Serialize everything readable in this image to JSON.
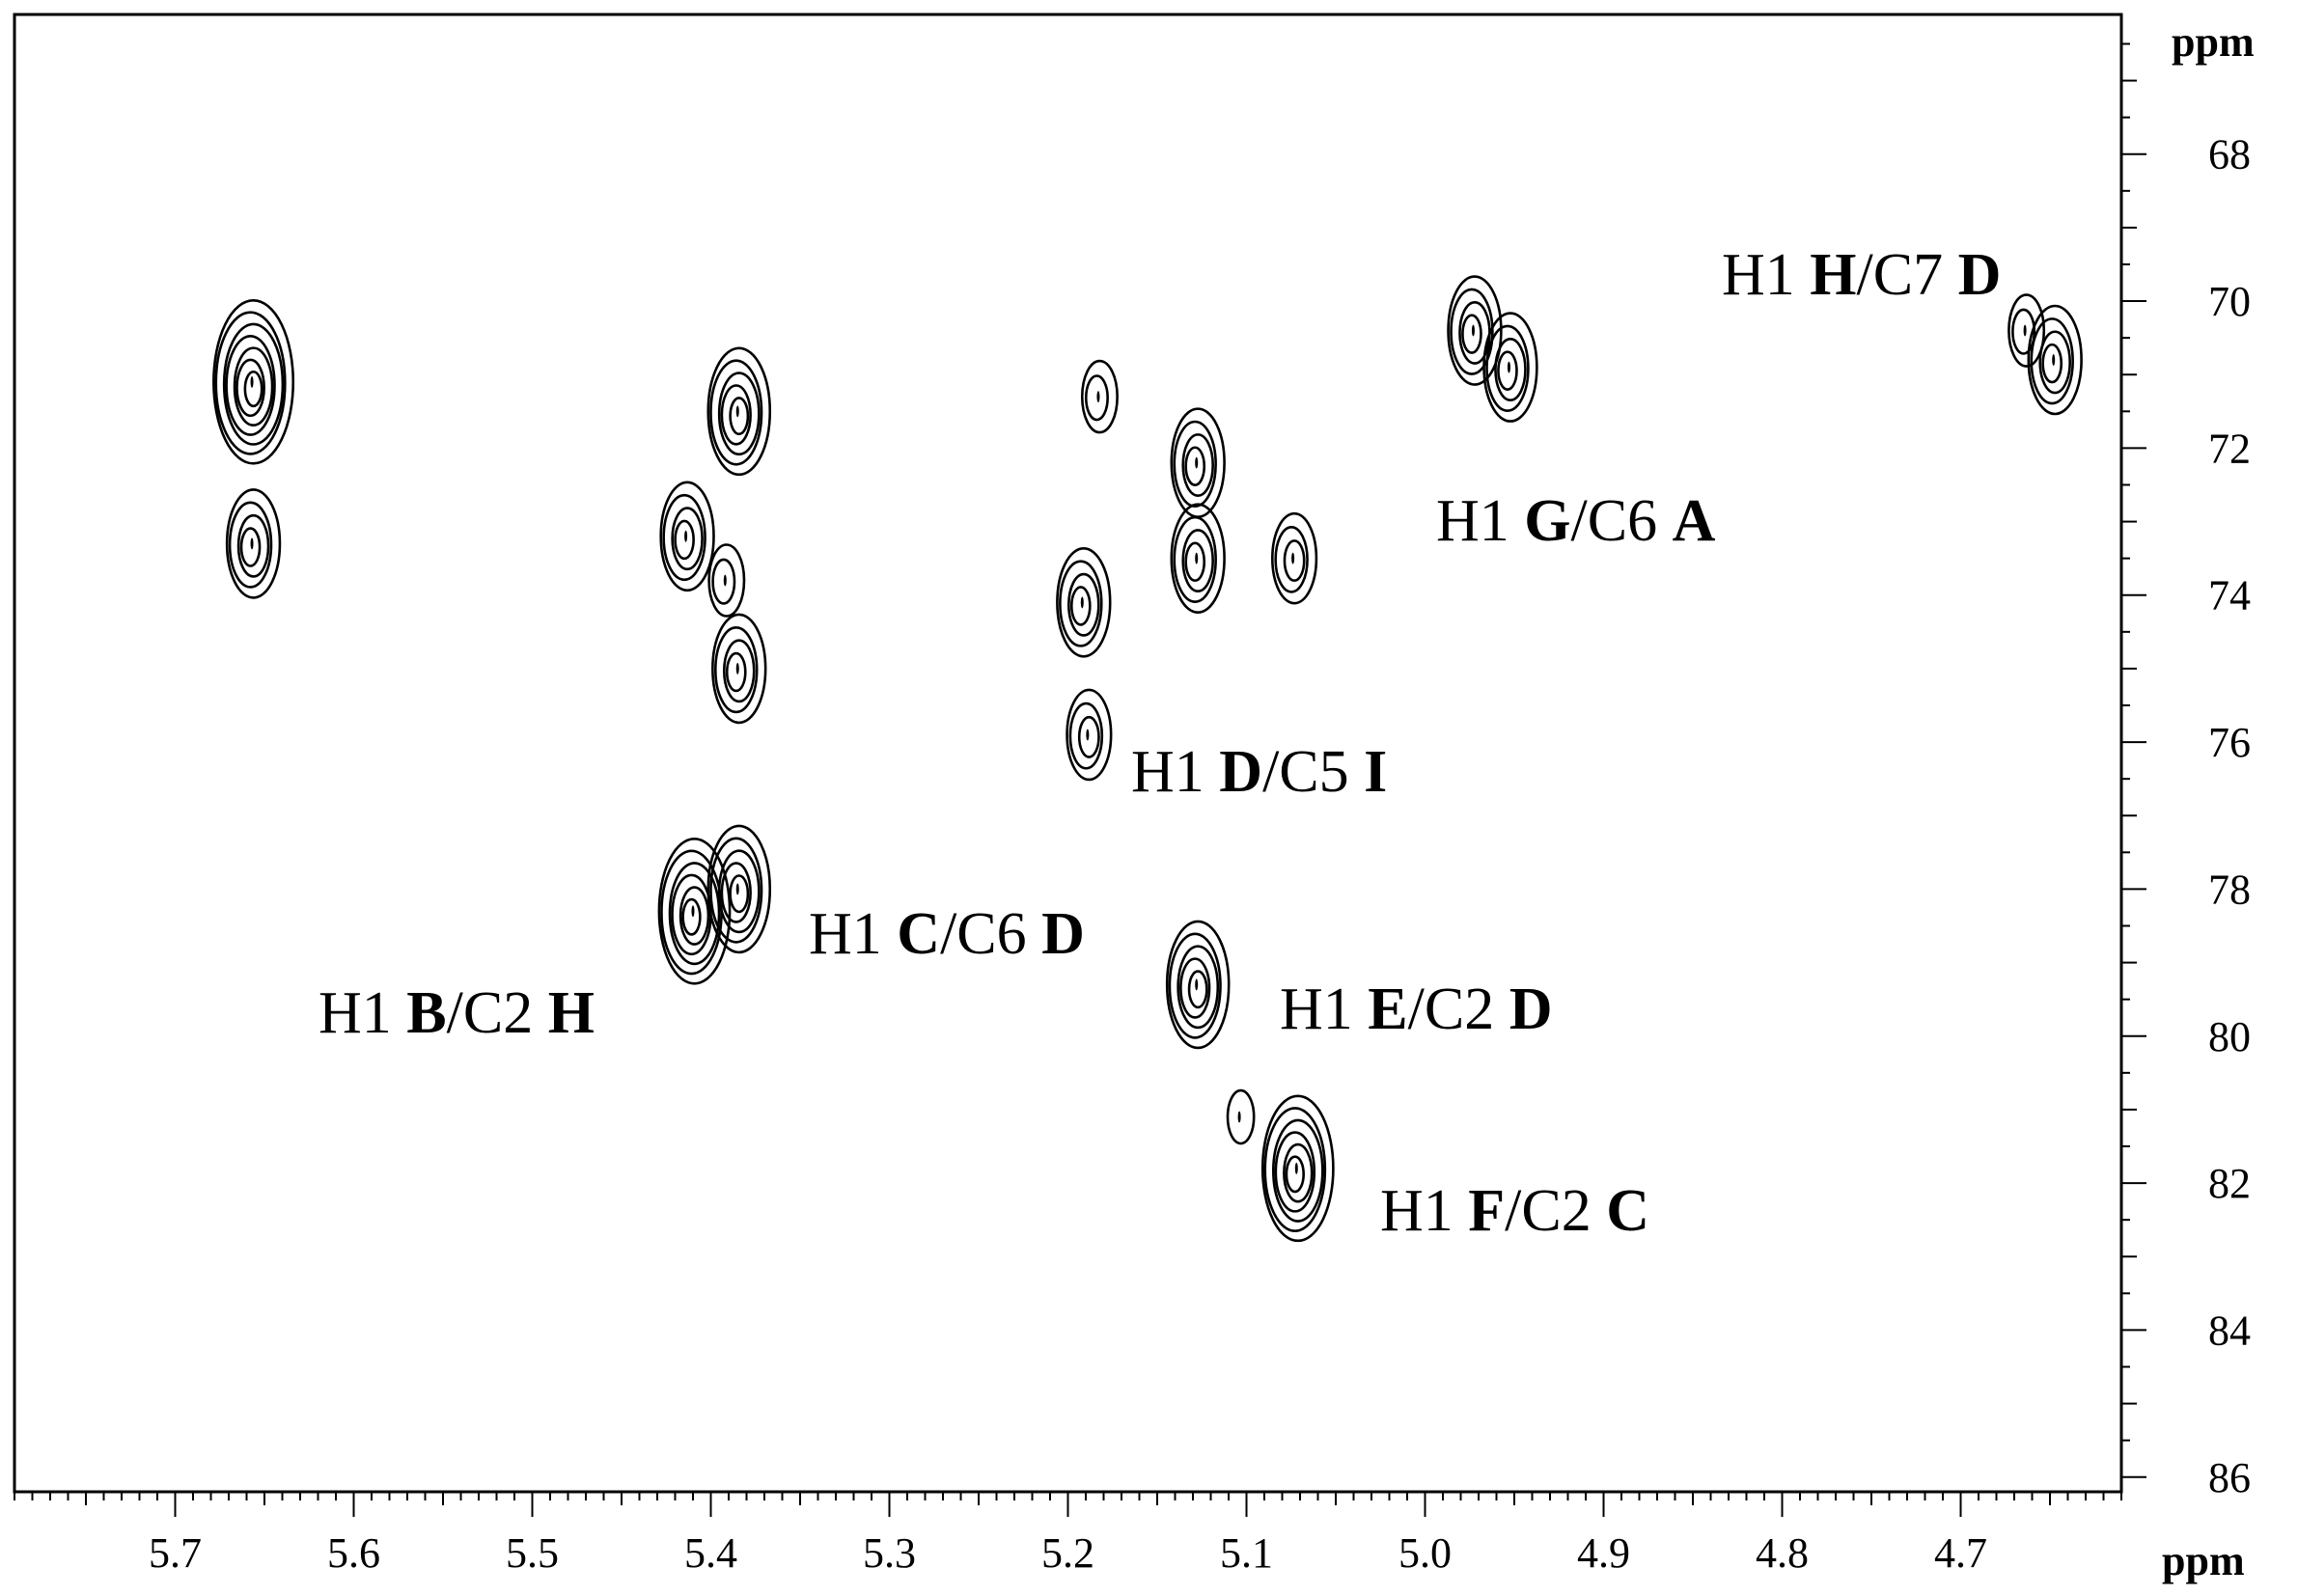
{
  "chart_data": {
    "type": "contour",
    "x_unit": "ppm",
    "y_unit": "ppm",
    "x_range": [
      5.79,
      4.61
    ],
    "y_range": [
      66.1,
      86.2
    ],
    "x_ticks": [
      "5.7",
      "5.6",
      "5.5",
      "5.4",
      "5.3",
      "5.2",
      "5.1",
      "5.0",
      "4.9",
      "4.8",
      "4.7"
    ],
    "y_ticks": [
      "68",
      "70",
      "72",
      "74",
      "76",
      "78",
      "80",
      "82",
      "84",
      "86"
    ],
    "annotations": [
      {
        "prefix": "H1 ",
        "r1": "H",
        "mid": "/C7 ",
        "r2": "D"
      },
      {
        "prefix": "H1 ",
        "r1": "G",
        "mid": "/C6 ",
        "r2": "A"
      },
      {
        "prefix": "H1 ",
        "r1": "D",
        "mid": "/C5 ",
        "r2": "I"
      },
      {
        "prefix": "H1 ",
        "r1": "C",
        "mid": "/C6 ",
        "r2": "D"
      },
      {
        "prefix": "H1 ",
        "r1": "B",
        "mid": "/C2 ",
        "r2": "H"
      },
      {
        "prefix": "H1 ",
        "r1": "E",
        "mid": "/C2 ",
        "r2": "D"
      },
      {
        "prefix": "H1 ",
        "r1": "F",
        "mid": "/C2 ",
        "r2": "C"
      }
    ],
    "peaks": [
      {
        "x": 5.657,
        "y": 71.1,
        "levels": 7
      },
      {
        "x": 5.657,
        "y": 73.3,
        "levels": 4
      },
      {
        "x": 5.385,
        "y": 71.5,
        "levels": 5
      },
      {
        "x": 5.414,
        "y": 73.2,
        "levels": 4
      },
      {
        "x": 5.392,
        "y": 73.8,
        "levels": 2
      },
      {
        "x": 5.385,
        "y": 75.0,
        "levels": 4
      },
      {
        "x": 5.41,
        "y": 78.3,
        "levels": 6
      },
      {
        "x": 5.385,
        "y": 78.0,
        "levels": 5
      },
      {
        "x": 5.183,
        "y": 71.3,
        "levels": 2
      },
      {
        "x": 5.192,
        "y": 74.1,
        "levels": 4
      },
      {
        "x": 5.189,
        "y": 75.9,
        "levels": 3
      },
      {
        "x": 5.128,
        "y": 72.2,
        "levels": 4
      },
      {
        "x": 5.128,
        "y": 73.5,
        "levels": 4
      },
      {
        "x": 5.074,
        "y": 73.5,
        "levels": 3
      },
      {
        "x": 5.128,
        "y": 79.3,
        "levels": 5
      },
      {
        "x": 5.104,
        "y": 81.1,
        "levels": 1
      },
      {
        "x": 5.072,
        "y": 81.8,
        "levels": 6
      },
      {
        "x": 4.973,
        "y": 70.4,
        "levels": 4
      },
      {
        "x": 4.953,
        "y": 70.9,
        "levels": 4
      },
      {
        "x": 4.664,
        "y": 70.4,
        "levels": 2
      },
      {
        "x": 4.648,
        "y": 70.8,
        "levels": 4
      }
    ]
  }
}
